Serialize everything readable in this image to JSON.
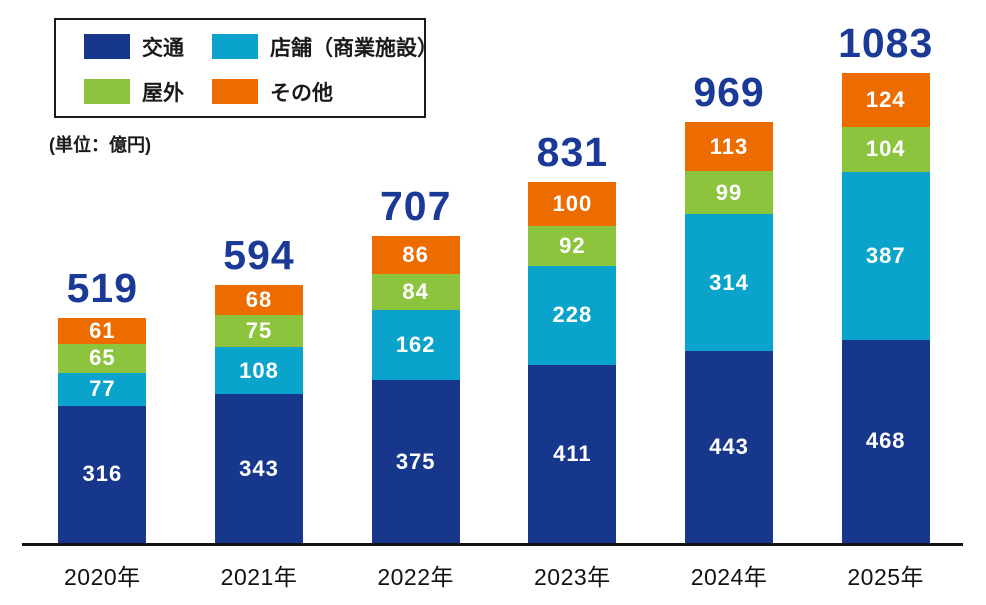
{
  "unit_label": "(単位：億円)",
  "colors": {
    "traffic": "#17378c",
    "store": "#0aa3cb",
    "outdoor": "#8cc43d",
    "other": "#ed6c00",
    "total_label": "#1b3a97",
    "axis": "#111111",
    "segment_text": "#ffffff"
  },
  "legend": {
    "items": [
      {
        "key": "traffic",
        "label": "交通",
        "color": "#17378c"
      },
      {
        "key": "store",
        "label": "店舗（商業施設）",
        "color": "#0aa3cb"
      },
      {
        "key": "outdoor",
        "label": "屋外",
        "color": "#8cc43d"
      },
      {
        "key": "other",
        "label": "その他",
        "color": "#ed6c00"
      }
    ]
  },
  "chart_data": {
    "type": "bar",
    "stacked": true,
    "title": "",
    "ylabel": "(単位：億円)",
    "grid": false,
    "legend_position": "top-left",
    "categories": [
      "2020年",
      "2021年",
      "2022年",
      "2023年",
      "2024年",
      "2025年"
    ],
    "series": [
      {
        "key": "traffic",
        "name": "交通",
        "color": "#17378c",
        "values": [
          316,
          343,
          375,
          411,
          443,
          468
        ]
      },
      {
        "key": "store",
        "name": "店舗（商業施設）",
        "color": "#0aa3cb",
        "values": [
          77,
          108,
          162,
          228,
          314,
          387
        ]
      },
      {
        "key": "outdoor",
        "name": "屋外",
        "color": "#8cc43d",
        "values": [
          65,
          75,
          84,
          92,
          99,
          104
        ]
      },
      {
        "key": "other",
        "name": "その他",
        "color": "#ed6c00",
        "values": [
          61,
          68,
          86,
          100,
          113,
          124
        ]
      }
    ],
    "totals": [
      519,
      594,
      707,
      831,
      969,
      1083
    ]
  }
}
